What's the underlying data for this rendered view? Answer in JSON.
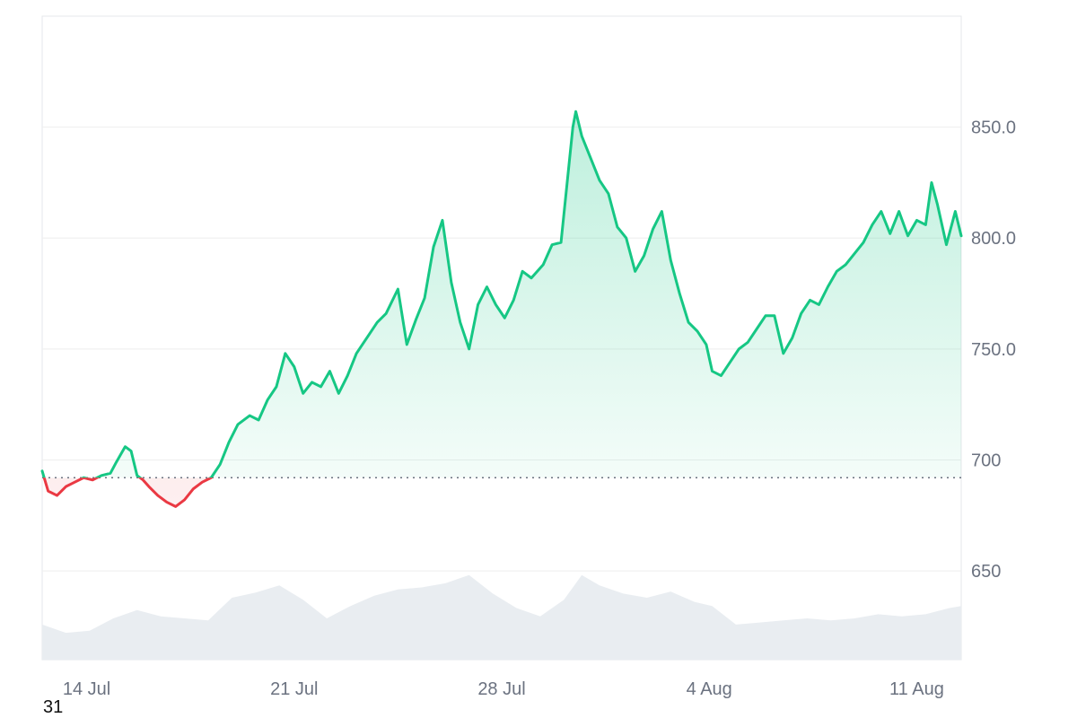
{
  "chart_data": {
    "type": "area",
    "title": "",
    "xlabel": "",
    "ylabel": "",
    "yaxis_position": "right",
    "ylim": [
      610,
      900
    ],
    "y_ticks": [
      650,
      700,
      750,
      800,
      850
    ],
    "y_tick_labels": [
      "650",
      "700",
      "750.0",
      "800.0",
      "850.0"
    ],
    "x_tick_labels": [
      "14 Jul",
      "21 Jul",
      "28 Jul",
      "4 Aug",
      "11 Aug"
    ],
    "x_tick_days": [
      1.5,
      8.5,
      15.5,
      22.5,
      29.5
    ],
    "x_range_days": [
      0,
      31
    ],
    "baseline": 692,
    "grid": true,
    "colors": {
      "up_line": "#16c784",
      "down_line": "#ea3943",
      "up_fill_top": "#16c784",
      "down_fill": "#ea3943",
      "grid": "#eeeeee",
      "axis_text": "#6b7280",
      "volume": "#e9edf1"
    },
    "series": [
      {
        "points": [
          [
            0.0,
            695
          ],
          [
            0.2,
            686
          ],
          [
            0.5,
            684
          ],
          [
            0.8,
            688
          ],
          [
            1.1,
            690
          ],
          [
            1.4,
            692
          ],
          [
            1.7,
            691
          ],
          [
            2.0,
            693
          ],
          [
            2.3,
            694
          ],
          [
            2.5,
            699
          ],
          [
            2.8,
            706
          ],
          [
            3.0,
            704
          ],
          [
            3.2,
            693
          ],
          [
            3.4,
            691
          ],
          [
            3.6,
            688
          ],
          [
            3.9,
            684
          ],
          [
            4.2,
            681
          ],
          [
            4.5,
            679
          ],
          [
            4.8,
            682
          ],
          [
            5.1,
            687
          ],
          [
            5.4,
            690
          ],
          [
            5.7,
            692
          ],
          [
            6.0,
            698
          ],
          [
            6.3,
            708
          ],
          [
            6.6,
            716
          ],
          [
            7.0,
            720
          ],
          [
            7.3,
            718
          ],
          [
            7.6,
            727
          ],
          [
            7.9,
            733
          ],
          [
            8.2,
            748
          ],
          [
            8.5,
            742
          ],
          [
            8.8,
            730
          ],
          [
            9.1,
            735
          ],
          [
            9.4,
            733
          ],
          [
            9.7,
            740
          ],
          [
            10.0,
            730
          ],
          [
            10.3,
            738
          ],
          [
            10.6,
            748
          ],
          [
            11.0,
            756
          ],
          [
            11.3,
            762
          ],
          [
            11.6,
            766
          ],
          [
            12.0,
            777
          ],
          [
            12.3,
            752
          ],
          [
            12.6,
            763
          ],
          [
            12.9,
            773
          ],
          [
            13.2,
            796
          ],
          [
            13.5,
            808
          ],
          [
            13.8,
            780
          ],
          [
            14.1,
            762
          ],
          [
            14.4,
            750
          ],
          [
            14.7,
            770
          ],
          [
            15.0,
            778
          ],
          [
            15.3,
            770
          ],
          [
            15.6,
            764
          ],
          [
            15.9,
            772
          ],
          [
            16.2,
            785
          ],
          [
            16.5,
            782
          ],
          [
            16.9,
            788
          ],
          [
            17.2,
            797
          ],
          [
            17.5,
            798
          ],
          [
            17.9,
            850
          ],
          [
            18.0,
            857
          ],
          [
            18.2,
            846
          ],
          [
            18.5,
            836
          ],
          [
            18.8,
            826
          ],
          [
            19.1,
            820
          ],
          [
            19.4,
            805
          ],
          [
            19.7,
            800
          ],
          [
            20.0,
            785
          ],
          [
            20.3,
            792
          ],
          [
            20.6,
            804
          ],
          [
            20.9,
            812
          ],
          [
            21.2,
            790
          ],
          [
            21.5,
            775
          ],
          [
            21.8,
            762
          ],
          [
            22.1,
            758
          ],
          [
            22.4,
            752
          ],
          [
            22.6,
            740
          ],
          [
            22.9,
            738
          ],
          [
            23.2,
            744
          ],
          [
            23.5,
            750
          ],
          [
            23.8,
            753
          ],
          [
            24.1,
            759
          ],
          [
            24.4,
            765
          ],
          [
            24.7,
            765
          ],
          [
            25.0,
            748
          ],
          [
            25.3,
            755
          ],
          [
            25.6,
            766
          ],
          [
            25.9,
            772
          ],
          [
            26.2,
            770
          ],
          [
            26.5,
            778
          ],
          [
            26.8,
            785
          ],
          [
            27.1,
            788
          ],
          [
            27.4,
            793
          ],
          [
            27.7,
            798
          ],
          [
            28.0,
            806
          ],
          [
            28.3,
            812
          ],
          [
            28.6,
            802
          ],
          [
            28.9,
            812
          ],
          [
            29.2,
            801
          ],
          [
            29.5,
            808
          ],
          [
            29.8,
            806
          ],
          [
            30.0,
            825
          ],
          [
            30.2,
            815
          ],
          [
            30.5,
            797
          ],
          [
            30.8,
            812
          ],
          [
            31.0,
            801
          ]
        ]
      }
    ],
    "volume": [
      [
        0.0,
        0.34
      ],
      [
        0.8,
        0.26
      ],
      [
        1.6,
        0.28
      ],
      [
        2.4,
        0.4
      ],
      [
        3.2,
        0.48
      ],
      [
        4.0,
        0.42
      ],
      [
        4.8,
        0.4
      ],
      [
        5.6,
        0.38
      ],
      [
        6.4,
        0.6
      ],
      [
        7.2,
        0.65
      ],
      [
        8.0,
        0.72
      ],
      [
        8.8,
        0.58
      ],
      [
        9.6,
        0.4
      ],
      [
        10.4,
        0.52
      ],
      [
        11.2,
        0.62
      ],
      [
        12.0,
        0.68
      ],
      [
        12.8,
        0.7
      ],
      [
        13.6,
        0.74
      ],
      [
        14.4,
        0.82
      ],
      [
        15.2,
        0.64
      ],
      [
        16.0,
        0.5
      ],
      [
        16.8,
        0.42
      ],
      [
        17.6,
        0.58
      ],
      [
        18.2,
        0.82
      ],
      [
        18.8,
        0.72
      ],
      [
        19.6,
        0.64
      ],
      [
        20.4,
        0.6
      ],
      [
        21.2,
        0.66
      ],
      [
        22.0,
        0.56
      ],
      [
        22.6,
        0.52
      ],
      [
        23.4,
        0.34
      ],
      [
        24.2,
        0.36
      ],
      [
        25.0,
        0.38
      ],
      [
        25.8,
        0.4
      ],
      [
        26.6,
        0.38
      ],
      [
        27.4,
        0.4
      ],
      [
        28.2,
        0.44
      ],
      [
        29.0,
        0.42
      ],
      [
        29.8,
        0.44
      ],
      [
        30.6,
        0.5
      ],
      [
        31.0,
        0.52
      ]
    ]
  },
  "corner_text": "31"
}
